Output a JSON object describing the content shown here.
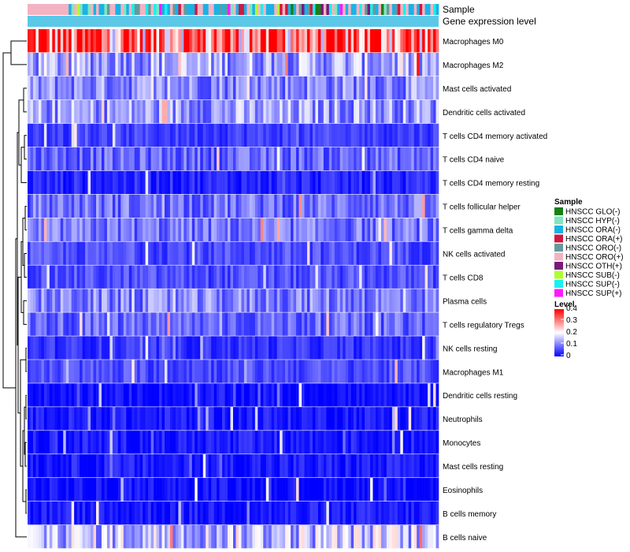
{
  "chart_data": {
    "type": "heatmap",
    "annotations": [
      "Sample",
      "Gene expression level"
    ],
    "row_labels": [
      "Macrophages M0",
      "Macrophages M2",
      "Mast cells activated",
      "Dendritic cells activated",
      "T cells CD4 memory activated",
      "T cells CD4 naive",
      "T cells CD4 memory resting",
      "T cells follicular helper",
      "T cells gamma delta",
      "NK cells activated",
      "T cells CD8",
      "Plasma cells",
      "T cells regulatory  Tregs",
      "NK cells resting",
      "Macrophages M1",
      "Dendritic cells resting",
      "Neutrophils",
      "Monocytes",
      "Mast cells resting",
      "Eosinophils",
      "B cells memory",
      "B cells naive"
    ],
    "n_columns": 150,
    "row_mean_levels": [
      0.32,
      0.13,
      0.11,
      0.12,
      0.05,
      0.08,
      0.03,
      0.09,
      0.09,
      0.06,
      0.06,
      0.1,
      0.08,
      0.04,
      0.06,
      0.01,
      0.02,
      0.02,
      0.02,
      0.01,
      0.02,
      0.15
    ],
    "sample_legend": {
      "title": "Sample",
      "entries": [
        {
          "label": "HNSCC GLO(-)",
          "color": "#1a7f1a"
        },
        {
          "label": "HNSCC HYP(-)",
          "color": "#7fe6bf"
        },
        {
          "label": "HNSCC ORA(-)",
          "color": "#19b2e6"
        },
        {
          "label": "HNSCC ORA(+)",
          "color": "#cc1a40"
        },
        {
          "label": "HNSCC ORO(-)",
          "color": "#66999c"
        },
        {
          "label": "HNSCC ORO(+)",
          "color": "#f4b3c2"
        },
        {
          "label": "HNSCC OTH(+)",
          "color": "#7a1a7a"
        },
        {
          "label": "HNSCC SUB(-)",
          "color": "#adff2f"
        },
        {
          "label": "HNSCC SUP(-)",
          "color": "#19f0f0"
        },
        {
          "label": "HNSCC SUP(+)",
          "color": "#ff19ff"
        }
      ]
    },
    "level_legend": {
      "title": "Level",
      "ticks": [
        0.4,
        0.3,
        0.2,
        0.1,
        0
      ],
      "tick_labels": [
        "0.4",
        "0.3",
        "0.2",
        "0.1",
        "0"
      ],
      "range": [
        0,
        0.4
      ],
      "colors": [
        "#0000ff",
        "#ffffff",
        "#ff0000"
      ]
    },
    "expression_bar_color": "#5bc8e8"
  }
}
